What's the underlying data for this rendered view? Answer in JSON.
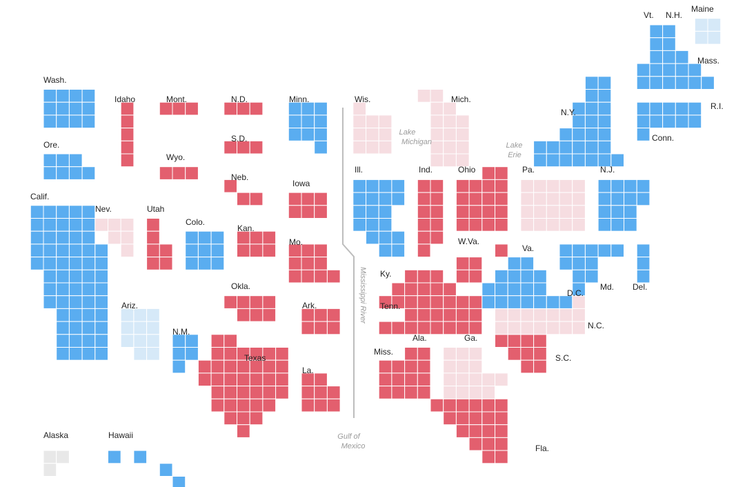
{
  "colors": {
    "blue": "#5aadf0",
    "red": "#e35f6e",
    "light_blue": "#d6e9f8",
    "light_red": "#f6dde1",
    "gray": "#e8e8e8"
  },
  "states": [
    {
      "name": "Wash.",
      "color": "blue"
    },
    {
      "name": "Ore.",
      "color": "blue"
    },
    {
      "name": "Calif.",
      "color": "blue"
    },
    {
      "name": "Idaho",
      "color": "red"
    },
    {
      "name": "Nev.",
      "color": "light_red"
    },
    {
      "name": "Utah",
      "color": "red"
    },
    {
      "name": "Ariz.",
      "color": "light_blue"
    },
    {
      "name": "Mont.",
      "color": "red"
    },
    {
      "name": "Wyo.",
      "color": "red"
    },
    {
      "name": "Colo.",
      "color": "blue"
    },
    {
      "name": "N.M.",
      "color": "blue"
    },
    {
      "name": "N.D.",
      "color": "red"
    },
    {
      "name": "S.D.",
      "color": "red"
    },
    {
      "name": "Neb.",
      "color": "red"
    },
    {
      "name": "Kan.",
      "color": "red"
    },
    {
      "name": "Okla.",
      "color": "red"
    },
    {
      "name": "Texas",
      "color": "red"
    },
    {
      "name": "Minn.",
      "color": "blue"
    },
    {
      "name": "Iowa",
      "color": "red"
    },
    {
      "name": "Mo.",
      "color": "red"
    },
    {
      "name": "Ark.",
      "color": "red"
    },
    {
      "name": "La.",
      "color": "red"
    },
    {
      "name": "Wis.",
      "color": "light_red"
    },
    {
      "name": "Ill.",
      "color": "blue"
    },
    {
      "name": "Mich.",
      "color": "light_red"
    },
    {
      "name": "Ind.",
      "color": "red"
    },
    {
      "name": "Ohio",
      "color": "red"
    },
    {
      "name": "Ky.",
      "color": "red"
    },
    {
      "name": "Tenn.",
      "color": "red"
    },
    {
      "name": "Miss.",
      "color": "red"
    },
    {
      "name": "Ala.",
      "color": "red"
    },
    {
      "name": "Ga.",
      "color": "light_red"
    },
    {
      "name": "Fla.",
      "color": "red"
    },
    {
      "name": "S.C.",
      "color": "red"
    },
    {
      "name": "N.C.",
      "color": "light_red"
    },
    {
      "name": "Va.",
      "color": "blue"
    },
    {
      "name": "W.Va.",
      "color": "red"
    },
    {
      "name": "Pa.",
      "color": "light_red"
    },
    {
      "name": "N.Y.",
      "color": "blue"
    },
    {
      "name": "N.J.",
      "color": "blue"
    },
    {
      "name": "Md.",
      "color": "blue"
    },
    {
      "name": "Del.",
      "color": "blue"
    },
    {
      "name": "D.C.",
      "color": "blue"
    },
    {
      "name": "Conn.",
      "color": "blue"
    },
    {
      "name": "R.I.",
      "color": "blue"
    },
    {
      "name": "Mass.",
      "color": "blue"
    },
    {
      "name": "Vt.",
      "color": "blue"
    },
    {
      "name": "N.H.",
      "color": "blue"
    },
    {
      "name": "Maine",
      "color": "light_blue"
    },
    {
      "name": "Alaska",
      "color": "gray"
    },
    {
      "name": "Hawaii",
      "color": "blue"
    }
  ],
  "geo_labels": {
    "lake_michigan": [
      "Lake",
      "Michigan"
    ],
    "lake_erie": [
      "Lake",
      "Erie"
    ],
    "mississippi": "Mississippi River",
    "gulf": [
      "Gulf of",
      "Mexico"
    ]
  }
}
